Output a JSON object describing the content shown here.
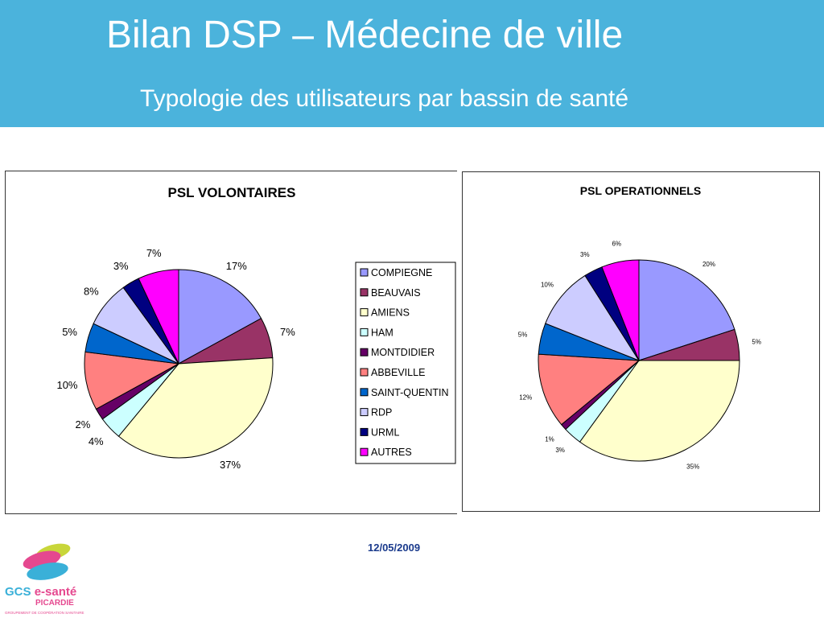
{
  "header": {
    "title": "Bilan DSP – Médecine de ville",
    "subtitle": "Typologie des utilisateurs par bassin de santé"
  },
  "footer": {
    "date": "12/05/2009",
    "logo_text": "GCS e-santé",
    "logo_subtext": "PICARDIE",
    "logo_tagline": "GROUPEMENT DE COOPÉRATION SANITAIRE"
  },
  "legend": {
    "items": [
      {
        "label": "COMPIEGNE",
        "color": "#9999ff"
      },
      {
        "label": "BEAUVAIS",
        "color": "#993366"
      },
      {
        "label": "AMIENS",
        "color": "#ffffcc"
      },
      {
        "label": "HAM",
        "color": "#ccffff"
      },
      {
        "label": "MONTDIDIER",
        "color": "#660066"
      },
      {
        "label": "ABBEVILLE",
        "color": "#ff8080"
      },
      {
        "label": "SAINT-QUENTIN",
        "color": "#0066cc"
      },
      {
        "label": "RDP",
        "color": "#ccccff"
      },
      {
        "label": "URML",
        "color": "#000080"
      },
      {
        "label": "AUTRES",
        "color": "#ff00ff"
      }
    ]
  },
  "chart_data": [
    {
      "type": "pie",
      "title": "PSL VOLONTAIRES",
      "categories": [
        "COMPIEGNE",
        "BEAUVAIS",
        "AMIENS",
        "HAM",
        "MONTDIDIER",
        "ABBEVILLE",
        "SAINT-QUENTIN",
        "RDP",
        "URML",
        "AUTRES"
      ],
      "values": [
        17,
        7,
        37,
        4,
        2,
        10,
        5,
        8,
        3,
        7
      ],
      "data_labels": [
        "17%",
        "7%",
        "37%",
        "4%",
        "2%",
        "10%",
        "5%",
        "8%",
        "3%",
        "7%"
      ],
      "legend": "right"
    },
    {
      "type": "pie",
      "title": "PSL OPERATIONNELS",
      "categories": [
        "COMPIEGNE",
        "BEAUVAIS",
        "AMIENS",
        "HAM",
        "MONTDIDIER",
        "ABBEVILLE",
        "SAINT-QUENTIN",
        "RDP",
        "URML",
        "AUTRES"
      ],
      "values": [
        20,
        5,
        35,
        3,
        1,
        12,
        5,
        10,
        3,
        6
      ],
      "data_labels": [
        "20%",
        "5%",
        "35%",
        "3%",
        "1%",
        "12%",
        "5%",
        "10%",
        "3%",
        "6%"
      ]
    }
  ]
}
